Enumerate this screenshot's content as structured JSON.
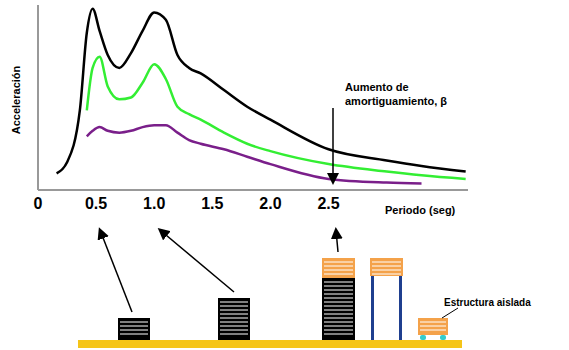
{
  "chart_data": {
    "type": "line",
    "ylabel": "Acceleración",
    "xlabel": "Periodo  (seg)",
    "x": [
      0.16,
      0.25,
      0.36,
      0.42,
      0.47,
      0.53,
      0.6,
      0.7,
      0.8,
      0.9,
      1.0,
      1.1,
      1.2,
      1.3,
      1.4,
      1.6,
      1.8,
      2.0,
      2.5,
      3.0,
      3.3,
      3.68
    ],
    "series": [
      {
        "color": "#000000",
        "values": [
          0.9,
          1.5,
          4.3,
          8.5,
          9.8,
          8.6,
          7.3,
          6.6,
          7.4,
          8.6,
          9.6,
          9.2,
          7.3,
          6.6,
          6.3,
          5.4,
          4.5,
          3.8,
          2.2,
          1.6,
          1.3,
          1.0
        ]
      },
      {
        "color": "#33ee33",
        "values": [
          null,
          null,
          null,
          4.3,
          6.6,
          7.2,
          5.6,
          4.9,
          5.0,
          5.8,
          6.8,
          6.0,
          4.5,
          4.1,
          3.8,
          3.1,
          2.5,
          2.1,
          1.4,
          1.0,
          0.8,
          0.6
        ]
      },
      {
        "color": "#7a1f8a",
        "values": [
          null,
          null,
          null,
          2.9,
          3.2,
          3.4,
          3.2,
          3.1,
          3.2,
          3.4,
          3.5,
          3.5,
          3.1,
          2.7,
          2.5,
          2.2,
          1.8,
          1.4,
          0.6,
          0.4,
          0.35,
          null
        ]
      }
    ],
    "xlim": [
      0,
      3.7
    ],
    "xticks": [
      0,
      0.5,
      {
        "value": 1,
        "label": "1.0"
      },
      1.5,
      {
        "value": 2,
        "label": "2.0"
      },
      2.5
    ],
    "ylim": [
      0,
      10
    ],
    "yticks": [],
    "tick_labels": "x",
    "grid": false,
    "annotations": [
      {
        "text": "Aumento de amortiguamiento, β"
      },
      {
        "text": "Estructura aislada"
      }
    ]
  }
}
